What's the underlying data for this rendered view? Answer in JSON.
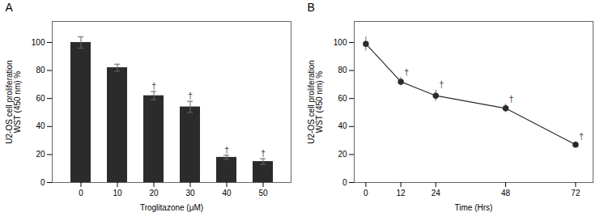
{
  "chart_data": [
    {
      "type": "bar",
      "title": "A",
      "categories": [
        "0",
        "10",
        "20",
        "30",
        "40",
        "50"
      ],
      "values": [
        100,
        82,
        62,
        54,
        18,
        15
      ],
      "errors": [
        4,
        2.5,
        3,
        4,
        1.5,
        2
      ],
      "color": "#2b2b2b",
      "xlabel": "Troglitazone (μM)",
      "ylabel": "U2-OS cell proliferation\nWST (450 nm) %",
      "ylim": [
        0,
        115
      ],
      "yticks": [
        0,
        20,
        40,
        60,
        80,
        100
      ],
      "annotations": [
        {
          "category": "20",
          "text": "†"
        },
        {
          "category": "30",
          "text": "†"
        },
        {
          "category": "40",
          "text": "†"
        },
        {
          "category": "50",
          "text": "†"
        }
      ]
    },
    {
      "type": "line",
      "title": "B",
      "x": [
        0,
        12,
        24,
        48,
        72
      ],
      "values": [
        99,
        72,
        62,
        53,
        27
      ],
      "errors": [
        5,
        3,
        4,
        3,
        2
      ],
      "color": "#2b2b2b",
      "marker": "circle",
      "xlabel": "Time (Hrs)",
      "ylabel": "U2-OS cell proliferation\nWST (450 nm) %",
      "xlim": [
        -4,
        78
      ],
      "xticks": [
        0,
        12,
        24,
        48,
        72
      ],
      "ylim": [
        0,
        115
      ],
      "yticks": [
        0,
        20,
        40,
        60,
        80,
        100
      ],
      "annotations": [
        {
          "x": 12,
          "text": "†"
        },
        {
          "x": 24,
          "text": "†"
        },
        {
          "x": 48,
          "text": "†"
        },
        {
          "x": 72,
          "text": "†"
        }
      ]
    }
  ]
}
